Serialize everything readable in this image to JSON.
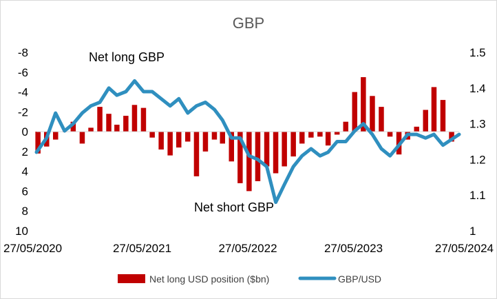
{
  "chart_data": {
    "type": "bar+line",
    "title": "GBP",
    "x_tick_labels": [
      "27/05/2020",
      "27/05/2021",
      "27/05/2022",
      "27/05/2023",
      "27/05/2024"
    ],
    "x_range": [
      "27/05/2020",
      "27/05/2024"
    ],
    "left_axis": {
      "tick_labels": [
        "-8",
        "-6",
        "-4",
        "-2",
        "0",
        "2",
        "4",
        "6",
        "8",
        "10"
      ],
      "ylim": [
        -8,
        10
      ],
      "inverted": true
    },
    "right_axis": {
      "tick_labels": [
        "1.5",
        "1.4",
        "1.3",
        "1.2",
        "1.1",
        "1"
      ],
      "ylim": [
        1.0,
        1.5
      ]
    },
    "annotations": [
      "Net long GBP",
      "Net short GBP"
    ],
    "legend_position": "bottom",
    "grid": false,
    "series": [
      {
        "name": "Net long USD position ($bn)",
        "kind": "bar",
        "axis": "left",
        "color": "#c00000",
        "x": [
          "2020-06-01",
          "2020-07-01",
          "2020-08-01",
          "2020-09-01",
          "2020-10-01",
          "2020-11-01",
          "2020-12-01",
          "2021-01-01",
          "2021-02-01",
          "2021-03-01",
          "2021-04-01",
          "2021-05-01",
          "2021-06-01",
          "2021-07-01",
          "2021-08-01",
          "2021-09-01",
          "2021-10-01",
          "2021-11-01",
          "2021-12-01",
          "2022-01-01",
          "2022-02-01",
          "2022-03-01",
          "2022-04-01",
          "2022-05-01",
          "2022-06-01",
          "2022-07-01",
          "2022-08-01",
          "2022-09-01",
          "2022-10-01",
          "2022-11-01",
          "2022-12-01",
          "2023-01-01",
          "2023-02-01",
          "2023-03-01",
          "2023-04-01",
          "2023-05-01",
          "2023-06-01",
          "2023-07-01",
          "2023-08-01",
          "2023-09-01",
          "2023-10-01",
          "2023-11-01",
          "2023-12-01",
          "2024-01-01",
          "2024-02-01",
          "2024-03-01",
          "2024-04-01",
          "2024-05-01"
        ],
        "values": [
          2.2,
          1.5,
          0.8,
          0.0,
          -1.0,
          1.2,
          -0.4,
          -2.5,
          -1.8,
          -0.7,
          -1.6,
          -2.7,
          -2.4,
          0.6,
          1.8,
          2.4,
          1.6,
          1.0,
          4.5,
          2.0,
          0.8,
          1.2,
          3.0,
          5.2,
          6.0,
          5.0,
          3.5,
          4.2,
          3.5,
          2.5,
          1.2,
          0.6,
          0.5,
          1.4,
          0.3,
          -1.0,
          -4.0,
          -5.5,
          -3.6,
          -2.5,
          0.5,
          2.3,
          0.8,
          -0.5,
          -2.2,
          -4.5,
          -3.2,
          1.0
        ],
        "note": "values estimated"
      },
      {
        "name": "GBP/USD",
        "kind": "line",
        "axis": "right",
        "color": "#2f8fbf",
        "x": [
          "2020-05-27",
          "2020-07-01",
          "2020-08-01",
          "2020-09-01",
          "2020-10-01",
          "2020-11-01",
          "2020-12-01",
          "2021-01-01",
          "2021-02-01",
          "2021-03-01",
          "2021-04-01",
          "2021-05-01",
          "2021-06-01",
          "2021-07-01",
          "2021-08-01",
          "2021-09-01",
          "2021-10-01",
          "2021-11-01",
          "2021-12-01",
          "2022-01-01",
          "2022-02-01",
          "2022-03-01",
          "2022-04-01",
          "2022-05-01",
          "2022-06-01",
          "2022-07-01",
          "2022-08-01",
          "2022-09-01",
          "2022-10-01",
          "2022-11-01",
          "2022-12-01",
          "2023-01-01",
          "2023-02-01",
          "2023-03-01",
          "2023-04-01",
          "2023-05-01",
          "2023-06-01",
          "2023-07-01",
          "2023-08-01",
          "2023-09-01",
          "2023-10-01",
          "2023-11-01",
          "2023-12-01",
          "2024-01-01",
          "2024-02-01",
          "2024-03-01",
          "2024-04-01",
          "2024-05-27"
        ],
        "values": [
          1.22,
          1.26,
          1.33,
          1.28,
          1.3,
          1.33,
          1.35,
          1.36,
          1.4,
          1.38,
          1.39,
          1.42,
          1.39,
          1.39,
          1.37,
          1.35,
          1.37,
          1.33,
          1.35,
          1.36,
          1.34,
          1.31,
          1.26,
          1.26,
          1.21,
          1.2,
          1.18,
          1.08,
          1.13,
          1.18,
          1.21,
          1.23,
          1.21,
          1.22,
          1.25,
          1.25,
          1.28,
          1.3,
          1.27,
          1.23,
          1.21,
          1.24,
          1.27,
          1.27,
          1.26,
          1.27,
          1.24,
          1.27
        ],
        "note": "values estimated"
      }
    ]
  }
}
